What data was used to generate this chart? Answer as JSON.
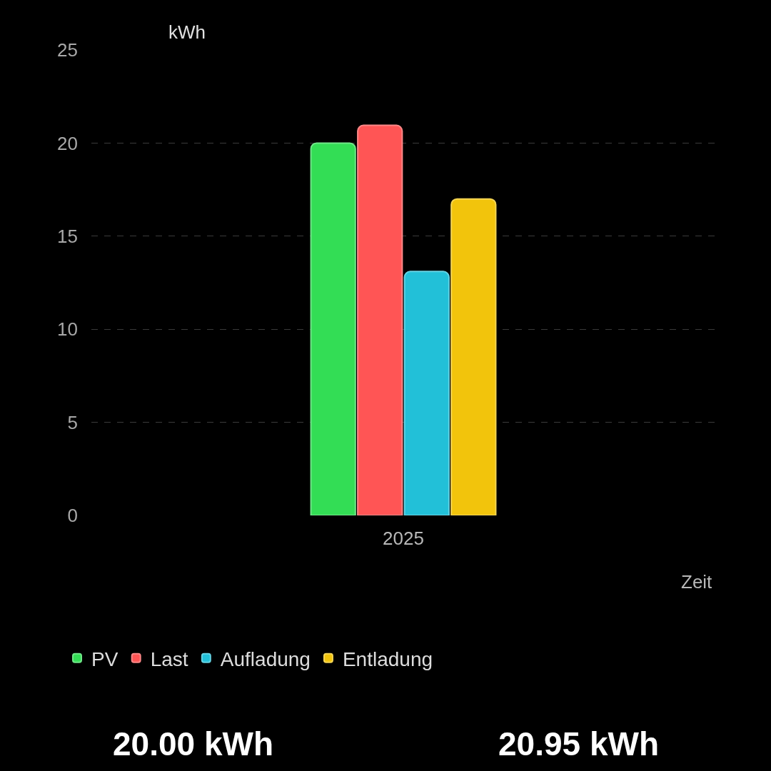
{
  "chart_data": {
    "type": "bar",
    "ylabel": "kWh",
    "xlabel": "Zeit",
    "categories": [
      "2025"
    ],
    "series": [
      {
        "name": "PV",
        "color": "#33dd55",
        "values": [
          20.0
        ]
      },
      {
        "name": "Last",
        "color": "#ff5555",
        "values": [
          20.95
        ]
      },
      {
        "name": "Aufladung",
        "color": "#22c0d8",
        "values": [
          13.1
        ]
      },
      {
        "name": "Entladung",
        "color": "#f2c40c",
        "values": [
          17.0
        ]
      }
    ],
    "ylim": [
      0,
      25
    ],
    "yticks": [
      0,
      5,
      10,
      15,
      20,
      25
    ],
    "grid": "y",
    "legend": "bottom",
    "annotations": [
      "20.00 kWh",
      "20.95 kWh"
    ]
  }
}
